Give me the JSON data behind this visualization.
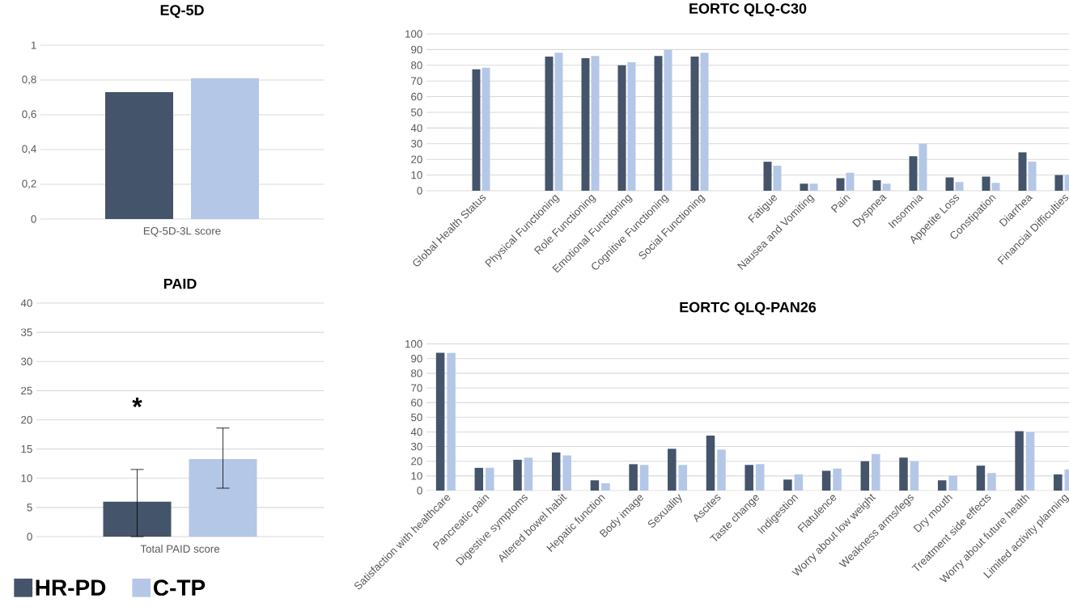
{
  "chart_data": [
    {
      "type": "bar",
      "title": "EQ-5D",
      "categories": [
        "EQ-5D-3L score"
      ],
      "series": [
        {
          "color": "#44546a",
          "values": [
            0.73
          ]
        },
        {
          "color": "#b4c7e7",
          "values": [
            0.81
          ]
        }
      ],
      "ylim": [
        0,
        1
      ],
      "yticks": [
        0,
        {
          "value": 0.2,
          "label": "0,2"
        },
        {
          "value": 0.4,
          "label": "0,4"
        },
        {
          "value": 0.6,
          "label": "0,6"
        },
        {
          "value": 0.8,
          "label": "0,8"
        },
        1
      ],
      "grid": "y"
    },
    {
      "type": "bar",
      "title": "EORTC QLQ-C30",
      "categories": [
        null,
        "Global Health Status",
        null,
        "Physical Functioning",
        "Role Functioning",
        "Emotional Functioning",
        "Cognitive Functioning",
        "Social Functioning",
        null,
        "Fatigue",
        "Nausea and Vomiting",
        "Pain",
        "Dyspnea",
        "Insomnia",
        "Appetite Loss",
        "Constipation",
        "Diarrhea",
        "Financial Difficulties"
      ],
      "series": [
        {
          "color": "#44546a",
          "values": [
            null,
            77.5,
            null,
            85.5,
            84.5,
            80,
            86,
            85.5,
            null,
            18.5,
            4.5,
            8,
            6.7,
            22,
            8.5,
            9,
            24.5,
            10
          ]
        },
        {
          "color": "#b4c7e7",
          "values": [
            null,
            78.5,
            null,
            88,
            86,
            82,
            90,
            88,
            null,
            16,
            4.5,
            11.5,
            4.5,
            30,
            5.5,
            5,
            18.5,
            10
          ]
        }
      ],
      "ylim": [
        0,
        100
      ],
      "yticks": [
        0,
        10,
        20,
        30,
        40,
        50,
        60,
        70,
        80,
        90,
        100
      ],
      "grid": "y"
    },
    {
      "type": "bar",
      "title": "PAID",
      "categories": [
        "Total PAID score"
      ],
      "series": [
        {
          "name": "HR-PD",
          "color": "#44546a",
          "values": [
            6
          ],
          "errors": [
            [
              0,
              11.5
            ]
          ]
        },
        {
          "name": "C-TP",
          "color": "#b4c7e7",
          "values": [
            13.3
          ],
          "errors": [
            [
              8.3,
              18.6
            ]
          ]
        }
      ],
      "ylim": [
        0,
        40
      ],
      "yticks": [
        0,
        5,
        10,
        15,
        20,
        25,
        30,
        35,
        40
      ],
      "grid": "y",
      "legend": "bottom left",
      "annotations": [
        "*"
      ]
    },
    {
      "type": "bar",
      "title": "EORTC QLQ-PAN26",
      "categories": [
        "Satisfaction with healthcare",
        "Pancreatic pain",
        "Digestive symptoms",
        "Altered bowel habit",
        "Hepatic function",
        "Body image",
        "Sexuality",
        "Ascites",
        "Taste change",
        "Indigestion",
        "Flatulence",
        "Worry about low weight",
        "Weakness arms/legs",
        "Dry mouth",
        "Treatment side effects",
        "Worry about future health",
        "Limited activity planning"
      ],
      "series": [
        {
          "color": "#44546a",
          "values": [
            94,
            15.5,
            21,
            26,
            7,
            18,
            28.5,
            37.5,
            17.5,
            7.5,
            13.5,
            20,
            22.5,
            7,
            17,
            40.5,
            11
          ]
        },
        {
          "color": "#b4c7e7",
          "values": [
            94,
            15.5,
            22.5,
            24,
            5,
            17.5,
            17.5,
            28,
            18,
            11,
            15,
            25,
            20,
            10,
            12,
            40,
            14.5
          ]
        }
      ],
      "ylim": [
        0,
        100
      ],
      "yticks": [
        0,
        10,
        20,
        30,
        40,
        50,
        60,
        70,
        80,
        90,
        100
      ],
      "grid": "y"
    }
  ]
}
